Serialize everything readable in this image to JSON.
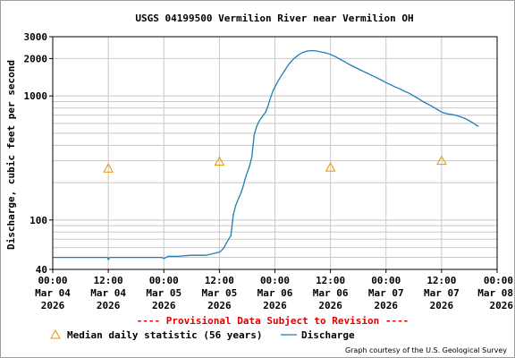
{
  "chart_data": {
    "type": "line",
    "title": "USGS 04199500 Vermilion River near Vermilion OH",
    "ylabel": "Discharge, cubic feet per second",
    "xlabel": "",
    "y_scale": "log",
    "ylim": [
      40,
      3000
    ],
    "y_ticks": [
      40,
      100,
      1000,
      2000,
      3000
    ],
    "y_minor_ticks": [
      50,
      60,
      70,
      80,
      90,
      200,
      300,
      400,
      500,
      600,
      700,
      800,
      900
    ],
    "xlim_hours": [
      0,
      96
    ],
    "x_ticks": [
      {
        "hour": 0,
        "time": "00:00",
        "date": "Mar 04",
        "year": "2026"
      },
      {
        "hour": 12,
        "time": "12:00",
        "date": "Mar 04",
        "year": "2026"
      },
      {
        "hour": 24,
        "time": "00:00",
        "date": "Mar 05",
        "year": "2026"
      },
      {
        "hour": 36,
        "time": "12:00",
        "date": "Mar 05",
        "year": "2026"
      },
      {
        "hour": 48,
        "time": "00:00",
        "date": "Mar 06",
        "year": "2026"
      },
      {
        "hour": 60,
        "time": "12:00",
        "date": "Mar 06",
        "year": "2026"
      },
      {
        "hour": 72,
        "time": "00:00",
        "date": "Mar 07",
        "year": "2026"
      },
      {
        "hour": 84,
        "time": "12:00",
        "date": "Mar 07",
        "year": "2026"
      },
      {
        "hour": 96,
        "time": "00:00",
        "date": "Mar 08",
        "year": "2026"
      }
    ],
    "grid": true,
    "series": [
      {
        "name": "Discharge",
        "color": "#1f7fb0",
        "x_hours": [
          0,
          5,
          10,
          11.8,
          12,
          12.3,
          15,
          18,
          20,
          23.5,
          24,
          25,
          27,
          30,
          33,
          34,
          35,
          36,
          36.5,
          37,
          37.5,
          38,
          38.5,
          39,
          39.5,
          40,
          40.5,
          41,
          41.5,
          42,
          42.5,
          43,
          43.5,
          44,
          44.5,
          45,
          45.5,
          46,
          46.5,
          47,
          47.5,
          48,
          48.5,
          49,
          49.5,
          50,
          51,
          52,
          53,
          54,
          55,
          56,
          57,
          58,
          59,
          60,
          61,
          62,
          63,
          64,
          65,
          66,
          67,
          68,
          69,
          70,
          71,
          72,
          73,
          74,
          75,
          76,
          77,
          78,
          79,
          80,
          81,
          82,
          83,
          84,
          85,
          86,
          87,
          88,
          89,
          90,
          91,
          91.5,
          92
        ],
        "values": [
          50,
          50,
          50,
          50,
          48,
          50,
          50,
          50,
          50,
          50,
          49,
          51,
          51,
          52,
          52,
          53,
          54,
          55,
          57,
          60,
          65,
          70,
          75,
          110,
          130,
          145,
          160,
          180,
          210,
          240,
          270,
          320,
          480,
          560,
          620,
          660,
          700,
          740,
          830,
          950,
          1080,
          1180,
          1280,
          1380,
          1480,
          1580,
          1800,
          1980,
          2130,
          2240,
          2300,
          2320,
          2300,
          2260,
          2220,
          2160,
          2080,
          1980,
          1890,
          1800,
          1720,
          1650,
          1580,
          1520,
          1460,
          1400,
          1340,
          1280,
          1230,
          1180,
          1140,
          1090,
          1050,
          1000,
          950,
          900,
          860,
          820,
          780,
          740,
          720,
          710,
          700,
          680,
          660,
          630,
          600,
          580,
          570
        ]
      },
      {
        "name": "Median daily statistic (56 years)",
        "color": "#e69500",
        "marker": "triangle",
        "x_hours": [
          12,
          36,
          60,
          84
        ],
        "values": [
          260,
          295,
          265,
          300
        ]
      }
    ],
    "legend": {
      "placement": "bottom"
    }
  },
  "provisional_notice": "---- Provisional Data Subject to Revision ----",
  "credit": "Graph courtesy of the U.S. Geological Survey"
}
